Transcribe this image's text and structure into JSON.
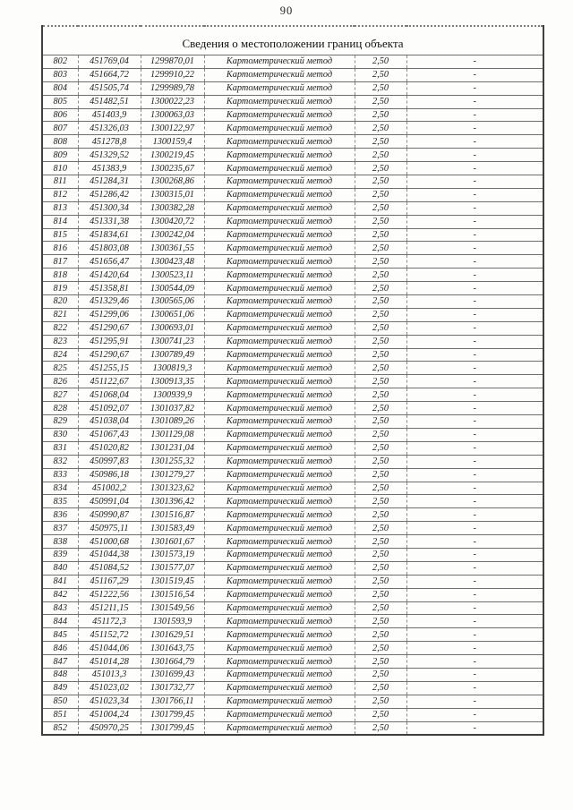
{
  "page": {
    "number": "90"
  },
  "table": {
    "title": "Сведения о местоположении границ объекта",
    "repeated_columns": {
      "method": "Картометрический метод",
      "precision": "2,50",
      "note": "-"
    },
    "rows": [
      [
        "802",
        "451769,04",
        "1299870,01"
      ],
      [
        "803",
        "451664,72",
        "1299910,22"
      ],
      [
        "804",
        "451505,74",
        "1299989,78"
      ],
      [
        "805",
        "451482,51",
        "1300022,23"
      ],
      [
        "806",
        "451403,9",
        "1300063,03"
      ],
      [
        "807",
        "451326,03",
        "1300122,97"
      ],
      [
        "808",
        "451278,8",
        "1300159,4"
      ],
      [
        "809",
        "451329,52",
        "1300219,45"
      ],
      [
        "810",
        "451383,9",
        "1300235,67"
      ],
      [
        "811",
        "451284,31",
        "1300268,86"
      ],
      [
        "812",
        "451286,42",
        "1300315,01"
      ],
      [
        "813",
        "451300,34",
        "1300382,28"
      ],
      [
        "814",
        "451331,38",
        "1300420,72"
      ],
      [
        "815",
        "451834,61",
        "1300242,04"
      ],
      [
        "816",
        "451803,08",
        "1300361,55"
      ],
      [
        "817",
        "451656,47",
        "1300423,48"
      ],
      [
        "818",
        "451420,64",
        "1300523,11"
      ],
      [
        "819",
        "451358,81",
        "1300544,09"
      ],
      [
        "820",
        "451329,46",
        "1300565,06"
      ],
      [
        "821",
        "451299,06",
        "1300651,06"
      ],
      [
        "822",
        "451290,67",
        "1300693,01"
      ],
      [
        "823",
        "451295,91",
        "1300741,23"
      ],
      [
        "824",
        "451290,67",
        "1300789,49"
      ],
      [
        "825",
        "451255,15",
        "1300819,3"
      ],
      [
        "826",
        "451122,67",
        "1300913,35"
      ],
      [
        "827",
        "451068,04",
        "1300939,9"
      ],
      [
        "828",
        "451092,07",
        "1301037,82"
      ],
      [
        "829",
        "451038,04",
        "1301089,26"
      ],
      [
        "830",
        "451067,43",
        "1301129,08"
      ],
      [
        "831",
        "451020,82",
        "1301231,04"
      ],
      [
        "832",
        "450997,83",
        "1301255,32"
      ],
      [
        "833",
        "450986,18",
        "1301279,27"
      ],
      [
        "834",
        "451002,2",
        "1301323,62"
      ],
      [
        "835",
        "450991,04",
        "1301396,42"
      ],
      [
        "836",
        "450990,87",
        "1301516,87"
      ],
      [
        "837",
        "450975,11",
        "1301583,49"
      ],
      [
        "838",
        "451000,68",
        "1301601,67"
      ],
      [
        "839",
        "451044,38",
        "1301573,19"
      ],
      [
        "840",
        "451084,52",
        "1301577,07"
      ],
      [
        "841",
        "451167,29",
        "1301519,45"
      ],
      [
        "842",
        "451222,56",
        "1301516,54"
      ],
      [
        "843",
        "451211,15",
        "1301549,56"
      ],
      [
        "844",
        "451172,3",
        "1301593,9"
      ],
      [
        "845",
        "451152,72",
        "1301629,51"
      ],
      [
        "846",
        "451044,06",
        "1301643,75"
      ],
      [
        "847",
        "451014,28",
        "1301664,79"
      ],
      [
        "848",
        "451013,3",
        "1301699,43"
      ],
      [
        "849",
        "451023,02",
        "1301732,77"
      ],
      [
        "850",
        "451023,34",
        "1301766,11"
      ],
      [
        "851",
        "451004,24",
        "1301799,45"
      ],
      [
        "852",
        "450970,25",
        "1301799,45"
      ]
    ]
  }
}
